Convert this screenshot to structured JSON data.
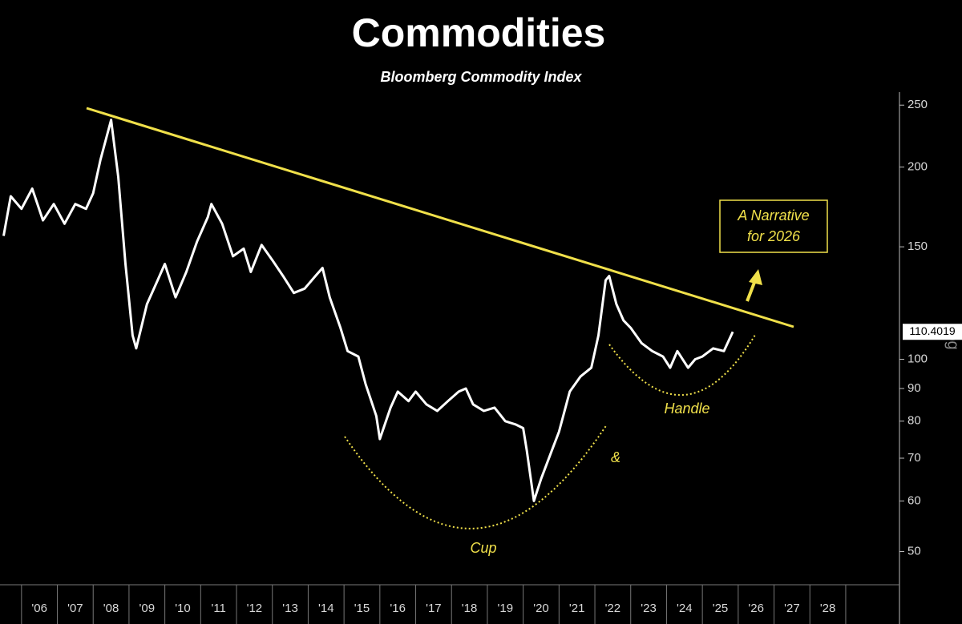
{
  "chart_data": {
    "type": "line",
    "title": "Commodities",
    "subtitle": "Bloomberg Commodity Index",
    "y_axis_label": "Log",
    "log_scale": true,
    "color": "#ffffff",
    "narrative": [
      "A Narrative",
      "for 2026"
    ],
    "annotations": [
      "Cup",
      "&",
      "Handle"
    ],
    "x": [
      2005.5,
      2005.7,
      2006.0,
      2006.3,
      2006.6,
      2006.9,
      2007.2,
      2007.5,
      2007.8,
      2008.0,
      2008.2,
      2008.5,
      2008.7,
      2008.9,
      2009.1,
      2009.2,
      2009.5,
      2009.8,
      2010.0,
      2010.3,
      2010.6,
      2010.9,
      2011.2,
      2011.3,
      2011.6,
      2011.9,
      2012.2,
      2012.4,
      2012.7,
      2013.0,
      2013.3,
      2013.6,
      2013.9,
      2014.2,
      2014.4,
      2014.6,
      2014.9,
      2015.1,
      2015.4,
      2015.6,
      2015.9,
      2016.0,
      2016.3,
      2016.5,
      2016.8,
      2017.0,
      2017.3,
      2017.6,
      2017.9,
      2018.2,
      2018.4,
      2018.6,
      2018.9,
      2019.2,
      2019.5,
      2019.8,
      2020.0,
      2020.1,
      2020.3,
      2020.5,
      2020.8,
      2021.0,
      2021.3,
      2021.6,
      2021.9,
      2022.1,
      2022.3,
      2022.4,
      2022.6,
      2022.8,
      2023.0,
      2023.3,
      2023.6,
      2023.9,
      2024.1,
      2024.3,
      2024.6,
      2024.8,
      2025.0,
      2025.3,
      2025.6,
      2025.85
    ],
    "values": [
      156,
      180,
      172,
      185,
      165,
      175,
      163,
      175,
      172,
      182,
      205,
      237,
      193,
      141,
      109,
      104,
      122,
      133,
      141,
      125,
      137,
      153,
      167,
      175,
      163,
      145,
      149,
      137,
      151,
      143,
      135,
      127,
      129,
      135,
      139,
      125,
      112,
      103,
      101,
      91.5,
      81.5,
      75,
      84,
      89,
      86,
      89,
      85,
      83,
      86,
      89,
      90,
      85,
      83,
      84,
      80,
      79,
      78,
      72,
      60,
      65,
      72,
      77,
      89,
      94,
      97,
      109,
      133,
      135,
      122,
      115,
      112,
      106,
      103,
      101,
      97,
      103,
      97,
      100,
      101,
      104,
      103,
      110.4019
    ],
    "xlim": [
      2005.4,
      2030.5
    ],
    "xticks": [
      {
        "value": 2006,
        "label": "'06"
      },
      {
        "value": 2007,
        "label": "'07"
      },
      {
        "value": 2008,
        "label": "'08"
      },
      {
        "value": 2009,
        "label": "'09"
      },
      {
        "value": 2010,
        "label": "'10"
      },
      {
        "value": 2011,
        "label": "'11"
      },
      {
        "value": 2012,
        "label": "'12"
      },
      {
        "value": 2013,
        "label": "'13"
      },
      {
        "value": 2014,
        "label": "'14"
      },
      {
        "value": 2015,
        "label": "'15"
      },
      {
        "value": 2016,
        "label": "'16"
      },
      {
        "value": 2017,
        "label": "'17"
      },
      {
        "value": 2018,
        "label": "'18"
      },
      {
        "value": 2019,
        "label": "'19"
      },
      {
        "value": 2020,
        "label": "'20"
      },
      {
        "value": 2021,
        "label": "'21"
      },
      {
        "value": 2022,
        "label": "'22"
      },
      {
        "value": 2023,
        "label": "'23"
      },
      {
        "value": 2024,
        "label": "'24"
      },
      {
        "value": 2025,
        "label": "'25"
      },
      {
        "value": 2026,
        "label": "'26"
      },
      {
        "value": 2027,
        "label": "'27"
      },
      {
        "value": 2028,
        "label": "'28"
      }
    ],
    "ylim": [
      45,
      262
    ],
    "yticks": [
      50,
      60,
      70,
      80,
      90,
      100,
      150,
      200,
      250
    ]
  }
}
